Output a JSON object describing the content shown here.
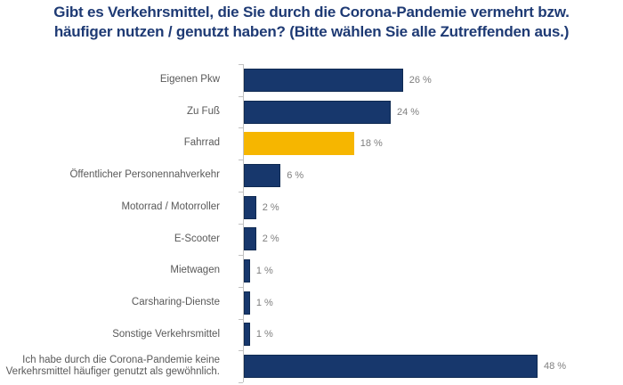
{
  "chart_data": {
    "type": "bar",
    "orientation": "horizontal",
    "title": "Gibt es Verkehrsmittel, die Sie durch die Corona-Pandemie vermehrt bzw. häufiger nutzen / genutzt haben? (Bitte wählen Sie alle Zutreffenden aus.)",
    "title_lines": [
      "Gibt es Verkehrsmittel, die Sie durch die Corona-Pandemie vermehrt bzw.",
      "häufiger nutzen / genutzt haben? (Bitte wählen Sie alle Zutreffenden aus.)"
    ],
    "xlabel": "",
    "ylabel": "",
    "grid": false,
    "legend": false,
    "categories": [
      "Eigenen Pkw",
      "Zu Fuß",
      "Fahrrad",
      "Öffentlicher Personennahverkehr",
      "Motorrad / Motorroller",
      "E-Scooter",
      "Mietwagen",
      "Carsharing-Dienste",
      "Sonstige Verkehrsmittel",
      "Ich habe durch die Corona-Pandemie keine\nVerkehrsmittel häufiger genutzt als gewöhnlich."
    ],
    "values": [
      26,
      24,
      18,
      6,
      2,
      2,
      1,
      1,
      1,
      48
    ],
    "value_labels": [
      "26 %",
      "24 %",
      "18 %",
      "6 %",
      "2 %",
      "2 %",
      "1 %",
      "1 %",
      "1 %",
      "48 %"
    ],
    "highlight_index": 2,
    "colors": {
      "bar_fill": "#17376C",
      "bar_border": "#0F2A52",
      "highlight_fill": "#F6B600",
      "title_text": "#1E3A74",
      "category_text": "#595959",
      "value_text": "#7F7F7F",
      "axis_line": "#C2C2C2"
    }
  }
}
